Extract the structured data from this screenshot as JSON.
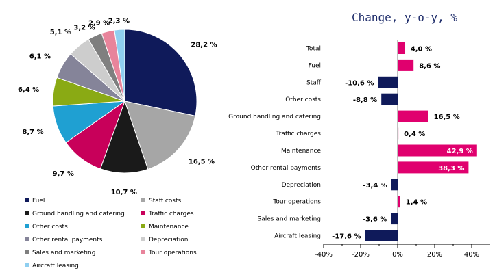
{
  "chart_data": [
    {
      "type": "pie",
      "series": [
        {
          "name": "Fuel",
          "value": 28.2,
          "label": "28,2 %",
          "color": "#0f1a5a"
        },
        {
          "name": "Staff costs",
          "value": 16.5,
          "label": "16,5 %",
          "color": "#a6a6a6"
        },
        {
          "name": "Ground handling and catering",
          "value": 10.7,
          "label": "10,7 %",
          "color": "#1a1a1a"
        },
        {
          "name": "Traffic charges",
          "value": 9.7,
          "label": "9,7 %",
          "color": "#c8005a"
        },
        {
          "name": "Other costs",
          "value": 8.7,
          "label": "8,7 %",
          "color": "#1fa0d2"
        },
        {
          "name": "Maintenance",
          "value": 6.4,
          "label": "6,4 %",
          "color": "#8aaa14"
        },
        {
          "name": "Other rental payments",
          "value": 6.1,
          "label": "6,1 %",
          "color": "#858499"
        },
        {
          "name": "Depreciation",
          "value": 5.1,
          "label": "5,1 %",
          "color": "#cdcdcd"
        },
        {
          "name": "Sales and marketing",
          "value": 3.2,
          "label": "3,2 %",
          "color": "#7f7f7f"
        },
        {
          "name": "Tour operations",
          "value": 2.9,
          "label": "2,9 %",
          "color": "#e8849b"
        },
        {
          "name": "Aircraft leasing",
          "value": 2.3,
          "label": "2,3 %",
          "color": "#8fcff0"
        }
      ],
      "legend": "bottom"
    },
    {
      "type": "bar",
      "orientation": "horizontal",
      "title": "Change, y-o-y, %",
      "categories": [
        "Total",
        "Fuel",
        "Staff",
        "Other costs",
        "Ground handling and catering",
        "Traffic charges",
        "Maintenance",
        "Other rental payments",
        "Depreciation",
        "Tour operations",
        "Sales and marketing",
        "Aircraft leasing"
      ],
      "values": [
        4.0,
        8.6,
        -10.6,
        -8.8,
        16.5,
        0.4,
        42.9,
        38.3,
        -3.4,
        1.4,
        -3.6,
        -17.6
      ],
      "value_labels": [
        "4,0 %",
        "8,6 %",
        "-10,6 %",
        "-8,8 %",
        "16,5 %",
        "0,4 %",
        "42,9 %",
        "38,3 %",
        "-3,4 %",
        "1,4 %",
        "-3,6 %",
        "-17,6 %"
      ],
      "xlim": [
        -40,
        50
      ],
      "xticks": [
        -40,
        -20,
        0,
        20,
        40
      ],
      "xtick_labels": [
        "-40%",
        "-20%",
        "0%",
        "20%",
        "40%"
      ],
      "colors": {
        "positive": "#e0006e",
        "negative": "#0f1a5a",
        "title": "#1f2d6b"
      },
      "grid": false
    }
  ]
}
